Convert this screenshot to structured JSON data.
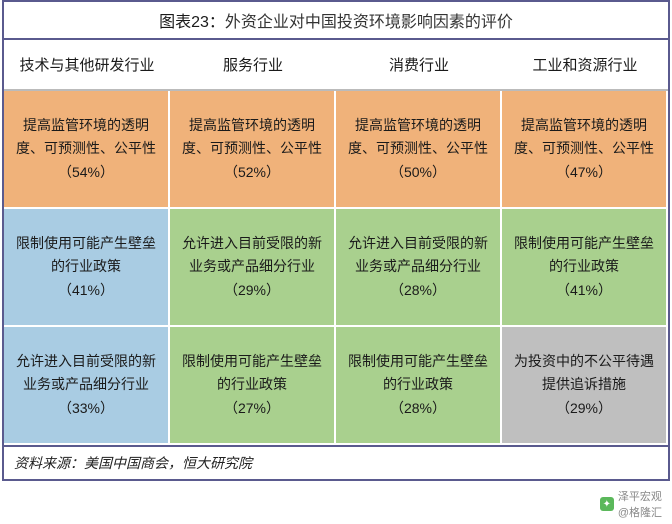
{
  "title_prefix": "图表23：",
  "title_text": "外资企业对中国投资环境影响因素的评价",
  "colors": {
    "orange": "#f0b27a",
    "blue": "#a9cce3",
    "green": "#a9d08e",
    "gray": "#bfbfbf"
  },
  "headers": [
    "技术与其他研发行业",
    "服务行业",
    "消费行业",
    "工业和资源行业"
  ],
  "rows": [
    [
      {
        "text": "提高监管环境的透明度、可预测性、公平性",
        "pct": "（54%）",
        "color": "orange"
      },
      {
        "text": "提高监管环境的透明度、可预测性、公平性",
        "pct": "（52%）",
        "color": "orange"
      },
      {
        "text": "提高监管环境的透明度、可预测性、公平性",
        "pct": "（50%）",
        "color": "orange"
      },
      {
        "text": "提高监管环境的透明度、可预测性、公平性",
        "pct": "（47%）",
        "color": "orange"
      }
    ],
    [
      {
        "text": "限制使用可能产生壁垒的行业政策",
        "pct": "（41%）",
        "color": "blue"
      },
      {
        "text": "允许进入目前受限的新业务或产品细分行业",
        "pct": "（29%）",
        "color": "green"
      },
      {
        "text": "允许进入目前受限的新业务或产品细分行业",
        "pct": "（28%）",
        "color": "green"
      },
      {
        "text": "限制使用可能产生壁垒的行业政策",
        "pct": "（41%）",
        "color": "green"
      }
    ],
    [
      {
        "text": "允许进入目前受限的新业务或产品细分行业",
        "pct": "（33%）",
        "color": "blue"
      },
      {
        "text": "限制使用可能产生壁垒的行业政策",
        "pct": "（27%）",
        "color": "green"
      },
      {
        "text": "限制使用可能产生壁垒的行业政策",
        "pct": "（28%）",
        "color": "green"
      },
      {
        "text": "为投资中的不公平待遇提供追诉措施",
        "pct": "（29%）",
        "color": "gray"
      }
    ]
  ],
  "source": "资料来源：美国中国商会，恒大研究院",
  "watermark_top": "泽平宏观",
  "watermark_bottom": "@格隆汇"
}
